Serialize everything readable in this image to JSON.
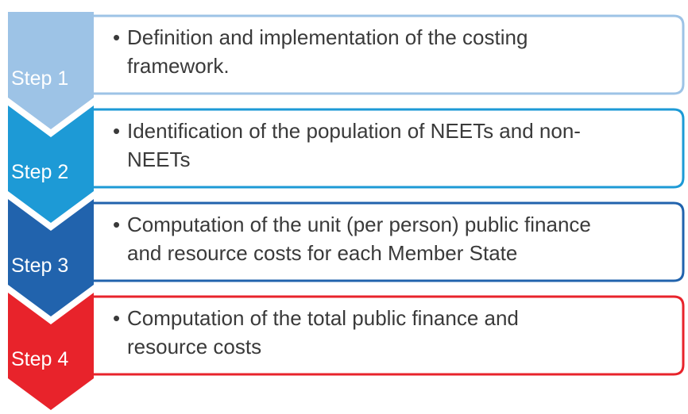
{
  "steps": [
    {
      "label": "Step 1",
      "lines": [
        "Definition and implementation of the costing",
        "framework."
      ]
    },
    {
      "label": "Step 2",
      "lines": [
        "Identification of the population of NEETs and non-",
        "NEETs"
      ]
    },
    {
      "label": "Step 3",
      "lines": [
        "Computation of the unit (per person) public finance",
        "and resource costs for each Member State"
      ]
    },
    {
      "label": "Step 4",
      "lines": [
        "Computation of the total public finance and",
        "resource costs"
      ]
    }
  ]
}
